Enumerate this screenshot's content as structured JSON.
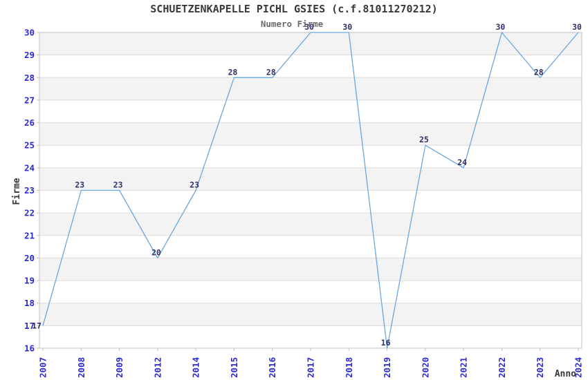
{
  "title": "SCHUETZENKAPELLE PICHL GSIES (c.f.81011270212)",
  "subtitle": "Numero Firme",
  "chart_data": {
    "type": "line",
    "title": "SCHUETZENKAPELLE PICHL GSIES (c.f.81011270212)",
    "subtitle": "Numero Firme",
    "xlabel": "Anno",
    "ylabel": "Firme",
    "categories": [
      "2007",
      "2008",
      "2009",
      "2012",
      "2014",
      "2015",
      "2016",
      "2017",
      "2018",
      "2019",
      "2020",
      "2021",
      "2022",
      "2023",
      "2024"
    ],
    "values": [
      17,
      23,
      23,
      20,
      23,
      28,
      28,
      30,
      30,
      16,
      25,
      24,
      30,
      28,
      30
    ],
    "ylim": [
      16,
      30
    ],
    "y_tick_step": 1,
    "x_tick_rotation": -90,
    "grid": true,
    "band_fill": "alternating-horizontal",
    "legend": "none",
    "markers": "none",
    "colors": {
      "line": "#6aa6de",
      "tick_label": "#2a2ace",
      "data_label": "#30306a",
      "band": "#f3f3f3",
      "grid": "#dcdcdc",
      "border": "#c2c2c2",
      "tick_mark": "#c2c2c2",
      "title": "#383838",
      "subtitle": "#6b6b6b",
      "axis_label": "#383838",
      "plot_background": "#ffffff"
    }
  }
}
